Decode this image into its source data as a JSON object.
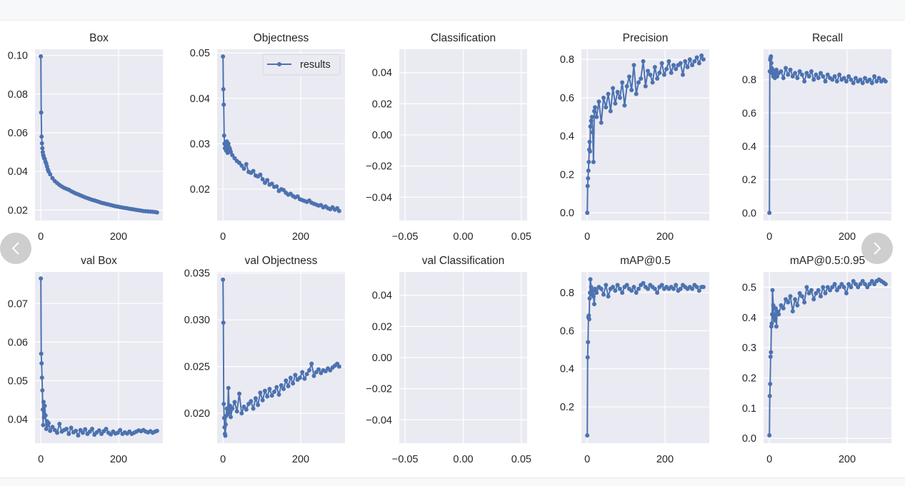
{
  "chart_data": [
    {
      "type": "line",
      "title": "Box",
      "series_name": "results",
      "xlim": [
        -15,
        314
      ],
      "ylim": [
        0.0146,
        0.1032
      ],
      "yticks": [
        0.02,
        0.04,
        0.06,
        0.08,
        0.1
      ],
      "ytick_labels": [
        "0.02",
        "0.04",
        "0.06",
        "0.08",
        "0.10"
      ],
      "xticks": [
        0,
        200
      ],
      "xtick_labels": [
        "0",
        "200"
      ],
      "values": [
        0.0995,
        0.0705,
        0.058,
        0.0545,
        0.052,
        0.05,
        0.0485,
        0.048,
        0.047,
        0.0465,
        0.045,
        0.044,
        0.0425,
        0.041,
        0.04,
        0.0385,
        0.0365,
        0.035,
        0.034,
        0.033,
        0.0322,
        0.0315,
        0.031,
        0.0305,
        0.0298,
        0.0292,
        0.0286,
        0.0281,
        0.0276,
        0.0271,
        0.0266,
        0.0262,
        0.0257,
        0.0253,
        0.025,
        0.0246,
        0.0242,
        0.0238,
        0.0235,
        0.0232,
        0.0229,
        0.0226,
        0.0223,
        0.022,
        0.0218,
        0.0215,
        0.0213,
        0.0211,
        0.0209,
        0.0207,
        0.0205,
        0.0203,
        0.0201,
        0.0199,
        0.0197,
        0.0195,
        0.0194,
        0.0193,
        0.0192,
        0.0191,
        0.019,
        0.0188
      ]
    },
    {
      "type": "line",
      "title": "Objectness",
      "series_name": "results",
      "legend": "top-right",
      "xlim": [
        -15,
        314
      ],
      "ylim": [
        0.0131,
        0.0508
      ],
      "yticks": [
        0.02,
        0.03,
        0.04,
        0.05
      ],
      "ytick_labels": [
        "0.02",
        "0.03",
        "0.04",
        "0.05"
      ],
      "xticks": [
        0,
        200
      ],
      "xtick_labels": [
        "0",
        "200"
      ],
      "values": [
        0.0492,
        0.042,
        0.0386,
        0.0318,
        0.03,
        0.029,
        0.0302,
        0.0295,
        0.0285,
        0.0305,
        0.028,
        0.03,
        0.0292,
        0.0288,
        0.0282,
        0.0275,
        0.0268,
        0.0262,
        0.0258,
        0.0252,
        0.0245,
        0.0255,
        0.0238,
        0.0236,
        0.024,
        0.023,
        0.0228,
        0.0232,
        0.0222,
        0.0214,
        0.022,
        0.021,
        0.0212,
        0.0205,
        0.0206,
        0.0196,
        0.02,
        0.0198,
        0.0192,
        0.0188,
        0.019,
        0.0185,
        0.0182,
        0.0184,
        0.0178,
        0.0176,
        0.0174,
        0.0172,
        0.0175,
        0.017,
        0.0168,
        0.0166,
        0.0164,
        0.0165,
        0.016,
        0.0162,
        0.0158,
        0.0156,
        0.016,
        0.0155,
        0.0158,
        0.0152
      ]
    },
    {
      "type": "line",
      "title": "Classification",
      "series_name": "results",
      "xlim": [
        -0.055,
        0.055
      ],
      "ylim": [
        -0.055,
        0.055
      ],
      "yticks": [
        -0.04,
        -0.02,
        0,
        0.02,
        0.04
      ],
      "ytick_labels": [
        "−0.04",
        "−0.02",
        "0.00",
        "0.02",
        "0.04"
      ],
      "xticks": [
        -0.05,
        0,
        0.05
      ],
      "xtick_labels": [
        "−0.05",
        "0.00",
        "0.05"
      ],
      "values": []
    },
    {
      "type": "line",
      "title": "Precision",
      "series_name": "results",
      "xlim": [
        -15,
        314
      ],
      "ylim": [
        -0.04,
        0.853
      ],
      "yticks": [
        0,
        0.2,
        0.4,
        0.6,
        0.8
      ],
      "ytick_labels": [
        "0.0",
        "0.2",
        "0.4",
        "0.6",
        "0.8"
      ],
      "xticks": [
        0,
        200
      ],
      "xtick_labels": [
        "0",
        "200"
      ],
      "values": [
        0.0,
        0.14,
        0.18,
        0.22,
        0.265,
        0.33,
        0.37,
        0.32,
        0.45,
        0.48,
        0.5,
        0.42,
        0.265,
        0.53,
        0.55,
        0.5,
        0.58,
        0.47,
        0.6,
        0.55,
        0.62,
        0.53,
        0.65,
        0.57,
        0.63,
        0.6,
        0.68,
        0.56,
        0.66,
        0.71,
        0.64,
        0.77,
        0.62,
        0.68,
        0.7,
        0.79,
        0.66,
        0.74,
        0.72,
        0.68,
        0.76,
        0.7,
        0.73,
        0.78,
        0.72,
        0.75,
        0.79,
        0.73,
        0.77,
        0.75,
        0.77,
        0.78,
        0.72,
        0.79,
        0.76,
        0.8,
        0.77,
        0.79,
        0.81,
        0.78,
        0.82,
        0.8
      ]
    },
    {
      "type": "line",
      "title": "Recall",
      "series_name": "results",
      "xlim": [
        -15,
        314
      ],
      "ylim": [
        -0.046,
        0.983
      ],
      "yticks": [
        0,
        0.2,
        0.4,
        0.6,
        0.8
      ],
      "ytick_labels": [
        "0.0",
        "0.2",
        "0.4",
        "0.6",
        "0.8"
      ],
      "xticks": [
        0,
        200
      ],
      "xtick_labels": [
        "0",
        "200"
      ],
      "values": [
        0.0,
        0.85,
        0.92,
        0.93,
        0.94,
        0.9,
        0.87,
        0.84,
        0.86,
        0.82,
        0.85,
        0.81,
        0.83,
        0.86,
        0.82,
        0.84,
        0.85,
        0.81,
        0.87,
        0.83,
        0.86,
        0.82,
        0.84,
        0.81,
        0.85,
        0.83,
        0.79,
        0.84,
        0.82,
        0.85,
        0.8,
        0.83,
        0.81,
        0.84,
        0.82,
        0.79,
        0.83,
        0.81,
        0.8,
        0.82,
        0.79,
        0.83,
        0.8,
        0.81,
        0.79,
        0.82,
        0.8,
        0.78,
        0.81,
        0.79,
        0.8,
        0.78,
        0.81,
        0.79,
        0.8,
        0.78,
        0.82,
        0.79,
        0.81,
        0.79,
        0.8,
        0.79
      ]
    },
    {
      "type": "line",
      "title": "val Box",
      "series_name": "results",
      "xlim": [
        -15,
        314
      ],
      "ylim": [
        0.0338,
        0.0782
      ],
      "yticks": [
        0.04,
        0.05,
        0.06,
        0.07
      ],
      "ytick_labels": [
        "0.04",
        "0.05",
        "0.06",
        "0.07"
      ],
      "xticks": [
        0,
        200
      ],
      "xtick_labels": [
        "0",
        "200"
      ],
      "values": [
        0.0765,
        0.057,
        0.0545,
        0.0508,
        0.0475,
        0.0425,
        0.0385,
        0.0445,
        0.0405,
        0.0435,
        0.041,
        0.0375,
        0.0395,
        0.0385,
        0.039,
        0.037,
        0.038,
        0.0372,
        0.0365,
        0.0388,
        0.0368,
        0.0372,
        0.0375,
        0.0362,
        0.0378,
        0.0366,
        0.037,
        0.0358,
        0.0372,
        0.0365,
        0.0374,
        0.0362,
        0.0368,
        0.0375,
        0.036,
        0.0366,
        0.0371,
        0.0362,
        0.0369,
        0.0375,
        0.0365,
        0.0361,
        0.0368,
        0.0363,
        0.0365,
        0.0372,
        0.0362,
        0.0366,
        0.0363,
        0.0368,
        0.0362,
        0.0365,
        0.0368,
        0.0371,
        0.0369,
        0.0372,
        0.0368,
        0.0366,
        0.0369,
        0.0365,
        0.0368,
        0.037
      ]
    },
    {
      "type": "line",
      "title": "val Objectness",
      "series_name": "results",
      "xlim": [
        -15,
        314
      ],
      "ylim": [
        0.0168,
        0.03513
      ],
      "yticks": [
        0.02,
        0.025,
        0.03,
        0.035
      ],
      "ytick_labels": [
        "0.020",
        "0.025",
        "0.030",
        "0.035"
      ],
      "xticks": [
        0,
        200
      ],
      "xtick_labels": [
        "0",
        "200"
      ],
      "values": [
        0.0343,
        0.0297,
        0.021,
        0.0195,
        0.0185,
        0.0178,
        0.0176,
        0.0188,
        0.0197,
        0.0205,
        0.0199,
        0.0227,
        0.0201,
        0.0208,
        0.0196,
        0.0205,
        0.0212,
        0.0202,
        0.0221,
        0.02,
        0.0207,
        0.0204,
        0.021,
        0.0213,
        0.0205,
        0.0216,
        0.0209,
        0.0222,
        0.0214,
        0.0224,
        0.0218,
        0.0226,
        0.0219,
        0.0223,
        0.0228,
        0.022,
        0.023,
        0.0226,
        0.0235,
        0.0229,
        0.0238,
        0.0232,
        0.0241,
        0.0236,
        0.0238,
        0.0244,
        0.0237,
        0.0242,
        0.0246,
        0.0253,
        0.024,
        0.0244,
        0.0247,
        0.0243,
        0.0246,
        0.0245,
        0.0248,
        0.0246,
        0.0249,
        0.0251,
        0.0253,
        0.025
      ]
    },
    {
      "type": "line",
      "title": "val Classification",
      "series_name": "results",
      "xlim": [
        -0.055,
        0.055
      ],
      "ylim": [
        -0.055,
        0.055
      ],
      "yticks": [
        -0.04,
        -0.02,
        0,
        0.02,
        0.04
      ],
      "ytick_labels": [
        "−0.04",
        "−0.02",
        "0.00",
        "0.02",
        "0.04"
      ],
      "xticks": [
        -0.05,
        0,
        0.05
      ],
      "xtick_labels": [
        "−0.05",
        "0.00",
        "0.05"
      ],
      "values": []
    },
    {
      "type": "line",
      "title": "mAP@0.5",
      "series_name": "results",
      "xlim": [
        -15,
        314
      ],
      "ylim": [
        0.009,
        0.909
      ],
      "yticks": [
        0.2,
        0.4,
        0.6,
        0.8
      ],
      "ytick_labels": [
        "0.2",
        "0.4",
        "0.6",
        "0.8"
      ],
      "xticks": [
        0,
        200
      ],
      "xtick_labels": [
        "0",
        "200"
      ],
      "values": [
        0.05,
        0.46,
        0.54,
        0.67,
        0.68,
        0.66,
        0.77,
        0.8,
        0.87,
        0.83,
        0.79,
        0.81,
        0.78,
        0.74,
        0.82,
        0.8,
        0.83,
        0.82,
        0.79,
        0.84,
        0.78,
        0.82,
        0.83,
        0.81,
        0.84,
        0.82,
        0.8,
        0.83,
        0.84,
        0.82,
        0.81,
        0.83,
        0.8,
        0.82,
        0.84,
        0.85,
        0.83,
        0.82,
        0.84,
        0.83,
        0.82,
        0.8,
        0.83,
        0.84,
        0.82,
        0.83,
        0.82,
        0.83,
        0.82,
        0.84,
        0.81,
        0.82,
        0.84,
        0.83,
        0.82,
        0.83,
        0.82,
        0.84,
        0.83,
        0.81,
        0.83,
        0.83
      ]
    },
    {
      "type": "line",
      "title": "mAP@0.5:0.95",
      "series_name": "results",
      "xlim": [
        -15,
        314
      ],
      "ylim": [
        -0.016,
        0.5505
      ],
      "yticks": [
        0,
        0.1,
        0.2,
        0.3,
        0.4,
        0.5
      ],
      "ytick_labels": [
        "0.0",
        "0.1",
        "0.2",
        "0.3",
        "0.4",
        "0.5"
      ],
      "xticks": [
        0,
        200
      ],
      "xtick_labels": [
        "0",
        "200"
      ],
      "values": [
        0.01,
        0.14,
        0.18,
        0.27,
        0.285,
        0.37,
        0.38,
        0.41,
        0.49,
        0.44,
        0.4,
        0.39,
        0.43,
        0.37,
        0.42,
        0.41,
        0.44,
        0.43,
        0.46,
        0.45,
        0.47,
        0.42,
        0.46,
        0.44,
        0.48,
        0.47,
        0.45,
        0.5,
        0.48,
        0.49,
        0.46,
        0.48,
        0.49,
        0.47,
        0.5,
        0.48,
        0.5,
        0.49,
        0.5,
        0.51,
        0.49,
        0.5,
        0.51,
        0.5,
        0.48,
        0.51,
        0.5,
        0.52,
        0.51,
        0.5,
        0.51,
        0.52,
        0.51,
        0.5,
        0.51,
        0.52,
        0.51,
        0.52,
        0.525,
        0.52,
        0.515,
        0.51
      ]
    }
  ],
  "epochs": [
    0,
    1,
    2,
    3,
    4,
    5,
    6,
    7,
    8,
    10,
    12,
    14,
    16,
    18,
    20,
    24,
    30,
    36,
    42,
    48,
    54,
    60,
    66,
    72,
    78,
    84,
    90,
    96,
    102,
    108,
    114,
    120,
    126,
    132,
    138,
    144,
    150,
    156,
    162,
    168,
    174,
    180,
    186,
    192,
    198,
    204,
    210,
    216,
    222,
    228,
    234,
    240,
    246,
    252,
    258,
    264,
    270,
    276,
    282,
    288,
    294,
    299
  ],
  "legend": {
    "label": "results"
  },
  "colors": {
    "series": "#4C72B0",
    "plot_bg": "#EAEAF2",
    "grid": "#FFFFFF"
  },
  "carousel": {
    "prev_icon": "chevron-left-icon",
    "next_icon": "chevron-right-icon"
  }
}
